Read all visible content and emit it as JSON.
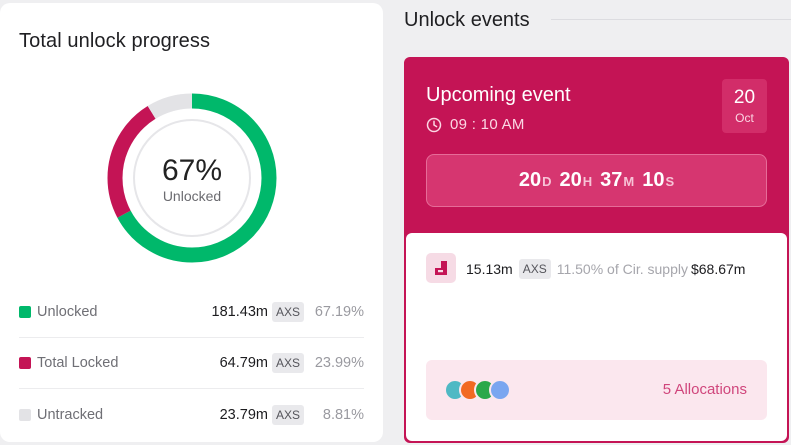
{
  "left": {
    "title": "Total unlock progress",
    "donut": {
      "percent_label": "67%",
      "sub_label": "Unlocked",
      "segments": [
        {
          "name": "Unlocked",
          "fraction": 0.6719,
          "color": "#00b86b"
        },
        {
          "name": "Total Locked",
          "fraction": 0.2399,
          "color": "#c41455"
        },
        {
          "name": "Untracked",
          "fraction": 0.0881,
          "color": "#e3e3e6"
        }
      ]
    },
    "legend": [
      {
        "label": "Unlocked",
        "amount": "181.43m",
        "token": "AXS",
        "pct": "67.19%",
        "color": "#00b86b"
      },
      {
        "label": "Total Locked",
        "amount": "64.79m",
        "token": "AXS",
        "pct": "23.99%",
        "color": "#c41455"
      },
      {
        "label": "Untracked",
        "amount": "23.79m",
        "token": "AXS",
        "pct": "8.81%",
        "color": "#e3e3e6"
      }
    ]
  },
  "right": {
    "title": "Unlock events",
    "event": {
      "label": "Upcoming event",
      "time": "09 : 10 AM",
      "date_day": "20",
      "date_month": "Oct",
      "countdown": [
        {
          "num": "20",
          "suffix": "D"
        },
        {
          "num": "20",
          "suffix": "H"
        },
        {
          "num": "37",
          "suffix": "M"
        },
        {
          "num": "10",
          "suffix": "S"
        }
      ],
      "detail": {
        "amount": "15.13m",
        "token": "AXS",
        "supply_pct": "11.50% of Cir. supply",
        "usd": "$68.67m"
      },
      "allocations_label": "5 Allocations",
      "allocation_colors": [
        "#4fb9c4",
        "#f26a22",
        "#2aa84a",
        "#7aa6f0"
      ]
    }
  },
  "colors": {
    "accent": "#c41455",
    "unlocked": "#00b86b"
  }
}
